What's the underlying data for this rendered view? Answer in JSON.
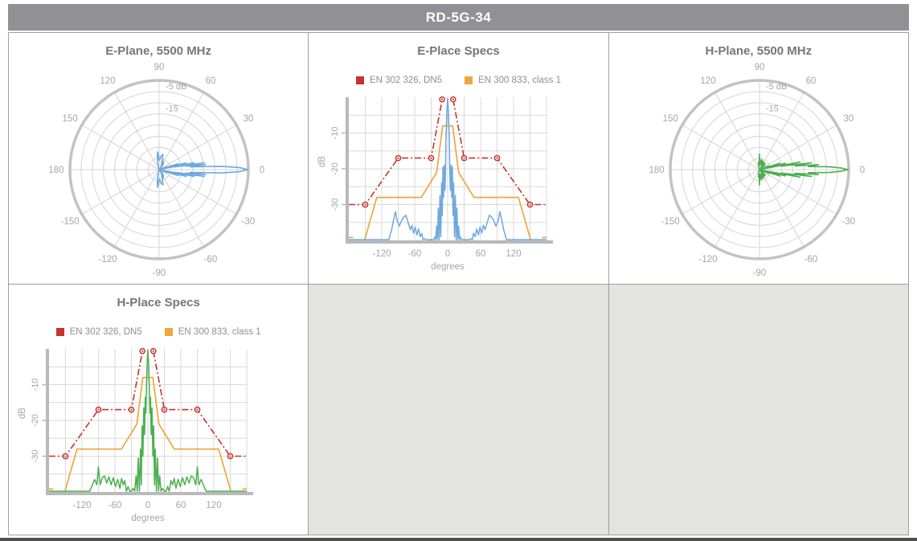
{
  "header": {
    "title": "RD-5G-34",
    "bg_color": "#919195",
    "text_color": "#ffffff"
  },
  "colors": {
    "e_plane_line": "#6fa8dc",
    "h_plane_line": "#4caf50",
    "spec_red": "#c4332f",
    "spec_orange": "#efa73d",
    "grid_line": "#d9d9d9",
    "polar_ring": "#d4d4d4",
    "polar_outer_ring": "#c3c3c3",
    "axis_bar": "#b9b9b9",
    "title_text": "#767676",
    "tick_text": "#a6a6a6",
    "empty_cell": "#e3e3e0"
  },
  "chart_data": {
    "patterns": {
      "e_plane": [
        [
          -180,
          -44
        ],
        [
          -125,
          -44
        ],
        [
          -120,
          -41
        ],
        [
          -116,
          -43
        ],
        [
          -111,
          -40
        ],
        [
          -107,
          -42
        ],
        [
          -102,
          -37
        ],
        [
          -98,
          -34
        ],
        [
          -95,
          -32
        ],
        [
          -92,
          -34.5
        ],
        [
          -88,
          -36
        ],
        [
          -84,
          -34.5
        ],
        [
          -80,
          -33.5
        ],
        [
          -76,
          -33
        ],
        [
          -72,
          -35
        ],
        [
          -68,
          -37
        ],
        [
          -65,
          -35.8
        ],
        [
          -62,
          -38
        ],
        [
          -59,
          -36.3
        ],
        [
          -56,
          -38.5
        ],
        [
          -53,
          -36.8
        ],
        [
          -50,
          -39
        ],
        [
          -47,
          -38
        ],
        [
          -45,
          -40.5
        ],
        [
          -42,
          -39.5
        ],
        [
          -40,
          -42
        ],
        [
          -37,
          -41
        ],
        [
          -35,
          -44
        ],
        [
          -32,
          -42
        ],
        [
          -30,
          -44
        ],
        [
          -27,
          -41.5
        ],
        [
          -25,
          -44
        ],
        [
          -23,
          -39
        ],
        [
          -21.5,
          -43
        ],
        [
          -20,
          -36
        ],
        [
          -18.5,
          -42
        ],
        [
          -17,
          -31
        ],
        [
          -15.5,
          -41
        ],
        [
          -14,
          -27.5
        ],
        [
          -12.5,
          -39
        ],
        [
          -11,
          -24
        ],
        [
          -9.8,
          -33
        ],
        [
          -8.6,
          -19.5
        ],
        [
          -7.4,
          -28
        ],
        [
          -6.2,
          -19
        ],
        [
          -5,
          -26
        ],
        [
          -4,
          -21
        ],
        [
          -3,
          -12
        ],
        [
          -1.5,
          -4
        ],
        [
          0,
          -0.3
        ],
        [
          1.5,
          -4
        ],
        [
          3,
          -12
        ],
        [
          4,
          -21
        ],
        [
          5,
          -26
        ],
        [
          6.2,
          -19
        ],
        [
          7.4,
          -28
        ],
        [
          8.6,
          -19.5
        ],
        [
          9.8,
          -33
        ],
        [
          11,
          -24
        ],
        [
          12.5,
          -39
        ],
        [
          14,
          -27.5
        ],
        [
          15.5,
          -41
        ],
        [
          17,
          -31
        ],
        [
          18.5,
          -42
        ],
        [
          20,
          -36
        ],
        [
          21.5,
          -43
        ],
        [
          23,
          -39
        ],
        [
          25,
          -44
        ],
        [
          27,
          -41.5
        ],
        [
          30,
          -44
        ],
        [
          32,
          -42
        ],
        [
          35,
          -44
        ],
        [
          37,
          -41
        ],
        [
          40,
          -42
        ],
        [
          42,
          -39.5
        ],
        [
          45,
          -40.5
        ],
        [
          47,
          -38
        ],
        [
          50,
          -39
        ],
        [
          53,
          -36.8
        ],
        [
          56,
          -38.5
        ],
        [
          59,
          -36.3
        ],
        [
          62,
          -38
        ],
        [
          65,
          -35.8
        ],
        [
          68,
          -37
        ],
        [
          72,
          -35
        ],
        [
          76,
          -33
        ],
        [
          80,
          -33.5
        ],
        [
          84,
          -34.5
        ],
        [
          88,
          -36
        ],
        [
          92,
          -34.5
        ],
        [
          95,
          -32
        ],
        [
          98,
          -34
        ],
        [
          102,
          -37
        ],
        [
          107,
          -42
        ],
        [
          111,
          -40
        ],
        [
          116,
          -43
        ],
        [
          120,
          -41
        ],
        [
          125,
          -44
        ],
        [
          180,
          -44
        ]
      ],
      "h_plane": [
        [
          -180,
          -44
        ],
        [
          -115,
          -44
        ],
        [
          -110,
          -40
        ],
        [
          -106,
          -42
        ],
        [
          -101,
          -38
        ],
        [
          -97,
          -36.5
        ],
        [
          -93,
          -38
        ],
        [
          -90,
          -33
        ],
        [
          -87,
          -38
        ],
        [
          -83,
          -36
        ],
        [
          -79,
          -35.5
        ],
        [
          -75,
          -37.5
        ],
        [
          -71,
          -35.8
        ],
        [
          -67,
          -38
        ],
        [
          -63,
          -36
        ],
        [
          -59,
          -38.5
        ],
        [
          -55,
          -36.5
        ],
        [
          -51,
          -39
        ],
        [
          -48,
          -36.2
        ],
        [
          -45,
          -38
        ],
        [
          -42,
          -36.8
        ],
        [
          -39,
          -40
        ],
        [
          -36,
          -38.5
        ],
        [
          -33,
          -41
        ],
        [
          -30,
          -43
        ],
        [
          -27,
          -39
        ],
        [
          -24,
          -42
        ],
        [
          -21.5,
          -35.5
        ],
        [
          -19.5,
          -41
        ],
        [
          -17.5,
          -30.5
        ],
        [
          -15.5,
          -42
        ],
        [
          -13.5,
          -28
        ],
        [
          -12,
          -38
        ],
        [
          -10.5,
          -21.5
        ],
        [
          -9,
          -30
        ],
        [
          -7.5,
          -16.5
        ],
        [
          -6,
          -24
        ],
        [
          -4.8,
          -13.5
        ],
        [
          -3.6,
          -18
        ],
        [
          -2.4,
          -9
        ],
        [
          -1.2,
          -3.5
        ],
        [
          0,
          -0.3
        ],
        [
          1.2,
          -3.5
        ],
        [
          2.4,
          -9
        ],
        [
          3.6,
          -18
        ],
        [
          4.8,
          -13.5
        ],
        [
          6,
          -24
        ],
        [
          7.5,
          -16.5
        ],
        [
          9,
          -30
        ],
        [
          10.5,
          -21.5
        ],
        [
          12,
          -38
        ],
        [
          13.5,
          -28
        ],
        [
          15.5,
          -42
        ],
        [
          17.5,
          -30.5
        ],
        [
          19.5,
          -41
        ],
        [
          21.5,
          -35.5
        ],
        [
          24,
          -42
        ],
        [
          27,
          -39
        ],
        [
          30,
          -43
        ],
        [
          33,
          -41
        ],
        [
          36,
          -38.5
        ],
        [
          39,
          -40
        ],
        [
          42,
          -36.8
        ],
        [
          45,
          -38
        ],
        [
          48,
          -36.2
        ],
        [
          51,
          -39
        ],
        [
          55,
          -36.5
        ],
        [
          59,
          -38.5
        ],
        [
          63,
          -36
        ],
        [
          67,
          -38
        ],
        [
          71,
          -35.8
        ],
        [
          75,
          -37.5
        ],
        [
          79,
          -35.5
        ],
        [
          83,
          -36
        ],
        [
          87,
          -38
        ],
        [
          90,
          -33
        ],
        [
          93,
          -38
        ],
        [
          97,
          -36.5
        ],
        [
          101,
          -38
        ],
        [
          106,
          -42
        ],
        [
          110,
          -40
        ],
        [
          115,
          -44
        ],
        [
          180,
          -44
        ]
      ]
    },
    "masks": {
      "en_302_326_dn5": {
        "label": "EN 302 326, DN5",
        "color": "#c4332f",
        "style": "dashdot",
        "points": [
          [
            -180,
            -30
          ],
          [
            -150,
            -30
          ],
          [
            -90,
            -17
          ],
          [
            -30,
            -17
          ],
          [
            -10,
            -0.6
          ],
          null,
          [
            10,
            -0.6
          ],
          [
            30,
            -17
          ],
          [
            90,
            -17
          ],
          [
            150,
            -30
          ],
          [
            180,
            -30
          ]
        ],
        "markers": [
          [
            -150,
            -30
          ],
          [
            -90,
            -17
          ],
          [
            -30,
            -17
          ],
          [
            -10,
            -0.6
          ],
          [
            10,
            -0.6
          ],
          [
            30,
            -17
          ],
          [
            90,
            -17
          ],
          [
            150,
            -30
          ]
        ]
      },
      "en_300_833_class1": {
        "label": "EN 300 833, class 1",
        "color": "#efa73d",
        "style": "solid",
        "points": [
          [
            -180,
            -39.2
          ],
          [
            -172,
            -39.2
          ],
          null,
          [
            -151,
            -41
          ],
          [
            -129,
            -28
          ],
          [
            -48,
            -28
          ],
          [
            -20,
            -21
          ],
          [
            -9,
            -8
          ],
          [
            9,
            -8
          ],
          [
            20,
            -21
          ],
          [
            48,
            -28
          ],
          [
            129,
            -28
          ],
          [
            151,
            -41
          ],
          null,
          [
            172,
            -39.2
          ],
          [
            180,
            -39.2
          ]
        ]
      }
    },
    "charts": [
      {
        "id": "e_polar",
        "type": "polar",
        "title": "E-Plane, 5500 MHz",
        "pattern": "e_plane",
        "line_color": "#6fa8dc",
        "r_axis": {
          "min": -40,
          "max": 0,
          "ring_step": 5,
          "labels": [
            {
              "text": "-5 dB",
              "db": -5
            },
            {
              "text": "-15",
              "db": -15
            }
          ]
        },
        "angle_labels": [
          [
            0,
            "0"
          ],
          [
            30,
            "30"
          ],
          [
            60,
            "60"
          ],
          [
            90,
            "90"
          ],
          [
            120,
            "120"
          ],
          [
            150,
            "150"
          ],
          [
            180,
            "180"
          ],
          [
            -150,
            "-150"
          ],
          [
            -120,
            "-120"
          ],
          [
            -90,
            "-90"
          ],
          [
            -60,
            "-60"
          ],
          [
            -30,
            "-30"
          ]
        ]
      },
      {
        "id": "e_specs",
        "type": "line",
        "title": "E-Place Specs",
        "pattern": "e_plane",
        "line_color": "#6fa8dc",
        "legend": [
          "en_302_326_dn5",
          "en_300_833_class1"
        ],
        "x_axis": {
          "min": -180,
          "max": 180,
          "grid_step": 30,
          "ticks": [
            -120,
            -60,
            0,
            60,
            120
          ],
          "label": "degrees"
        },
        "y_axis": {
          "min": -40,
          "max": 0,
          "grid_step": 5,
          "ticks": [
            -10,
            -20,
            -30
          ],
          "label": "dB"
        }
      },
      {
        "id": "h_polar",
        "type": "polar",
        "title": "H-Plane, 5500 MHz",
        "pattern": "h_plane",
        "line_color": "#4caf50",
        "r_axis": {
          "min": -40,
          "max": 0,
          "ring_step": 5,
          "labels": [
            {
              "text": "-5 dB",
              "db": -5
            },
            {
              "text": "-15",
              "db": -15
            }
          ]
        },
        "angle_labels": [
          [
            0,
            "0"
          ],
          [
            30,
            "30"
          ],
          [
            60,
            "60"
          ],
          [
            90,
            "90"
          ],
          [
            120,
            "120"
          ],
          [
            150,
            "150"
          ],
          [
            180,
            "180"
          ],
          [
            -150,
            "-150"
          ],
          [
            -120,
            "-120"
          ],
          [
            -90,
            "-90"
          ],
          [
            -60,
            "-60"
          ],
          [
            -30,
            "-30"
          ]
        ]
      },
      {
        "id": "h_specs",
        "type": "line",
        "title": "H-Place Specs",
        "pattern": "h_plane",
        "line_color": "#4caf50",
        "legend": [
          "en_302_326_dn5",
          "en_300_833_class1"
        ],
        "x_axis": {
          "min": -180,
          "max": 180,
          "grid_step": 30,
          "ticks": [
            -120,
            -60,
            0,
            60,
            120
          ],
          "label": "degrees"
        },
        "y_axis": {
          "min": -40,
          "max": 0,
          "grid_step": 5,
          "ticks": [
            -10,
            -20,
            -30
          ],
          "label": "dB"
        }
      }
    ]
  }
}
